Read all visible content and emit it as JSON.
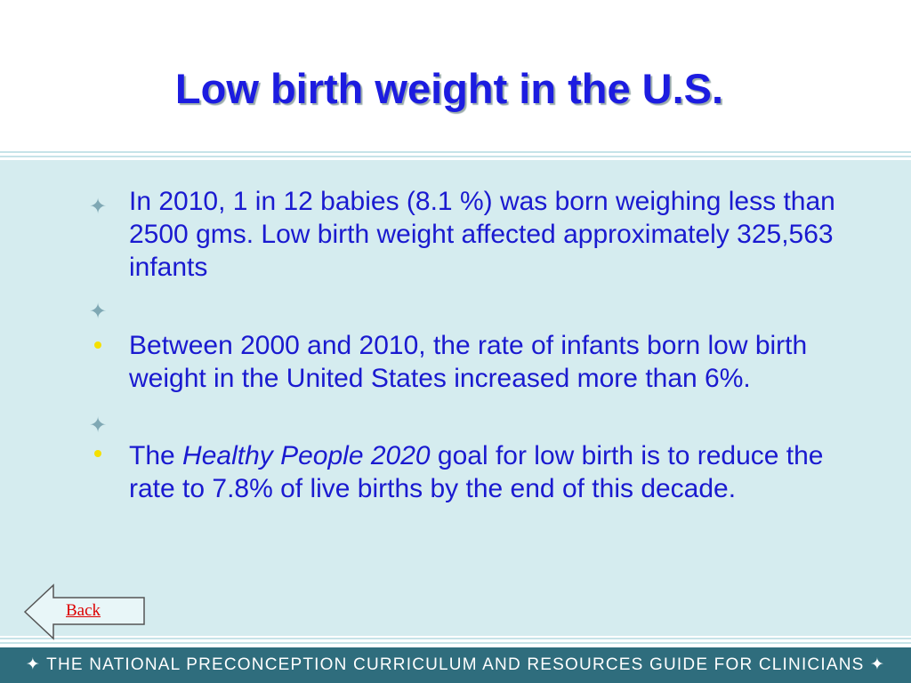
{
  "header": {
    "title": "Low birth weight in the U.S."
  },
  "bullets": [
    {
      "text": "In 2010, 1 in 12 babies (8.1 %) was born weighing less than 2500 gms. Low birth weight affected approximately 325,563 infants"
    },
    {
      "text": "Between 2000 and 2010, the rate of infants born low birth weight in the United States increased more than 6%."
    },
    {
      "parts": [
        "The ",
        "Healthy People 2020",
        " goal for low birth is to reduce the rate to 7.8% of live births by the end of this decade."
      ]
    }
  ],
  "nav": {
    "back": "Back"
  },
  "footer": {
    "text": "THE NATIONAL PRECONCEPTION CURRICULUM AND RESOURCES GUIDE FOR CLINICIANS"
  }
}
